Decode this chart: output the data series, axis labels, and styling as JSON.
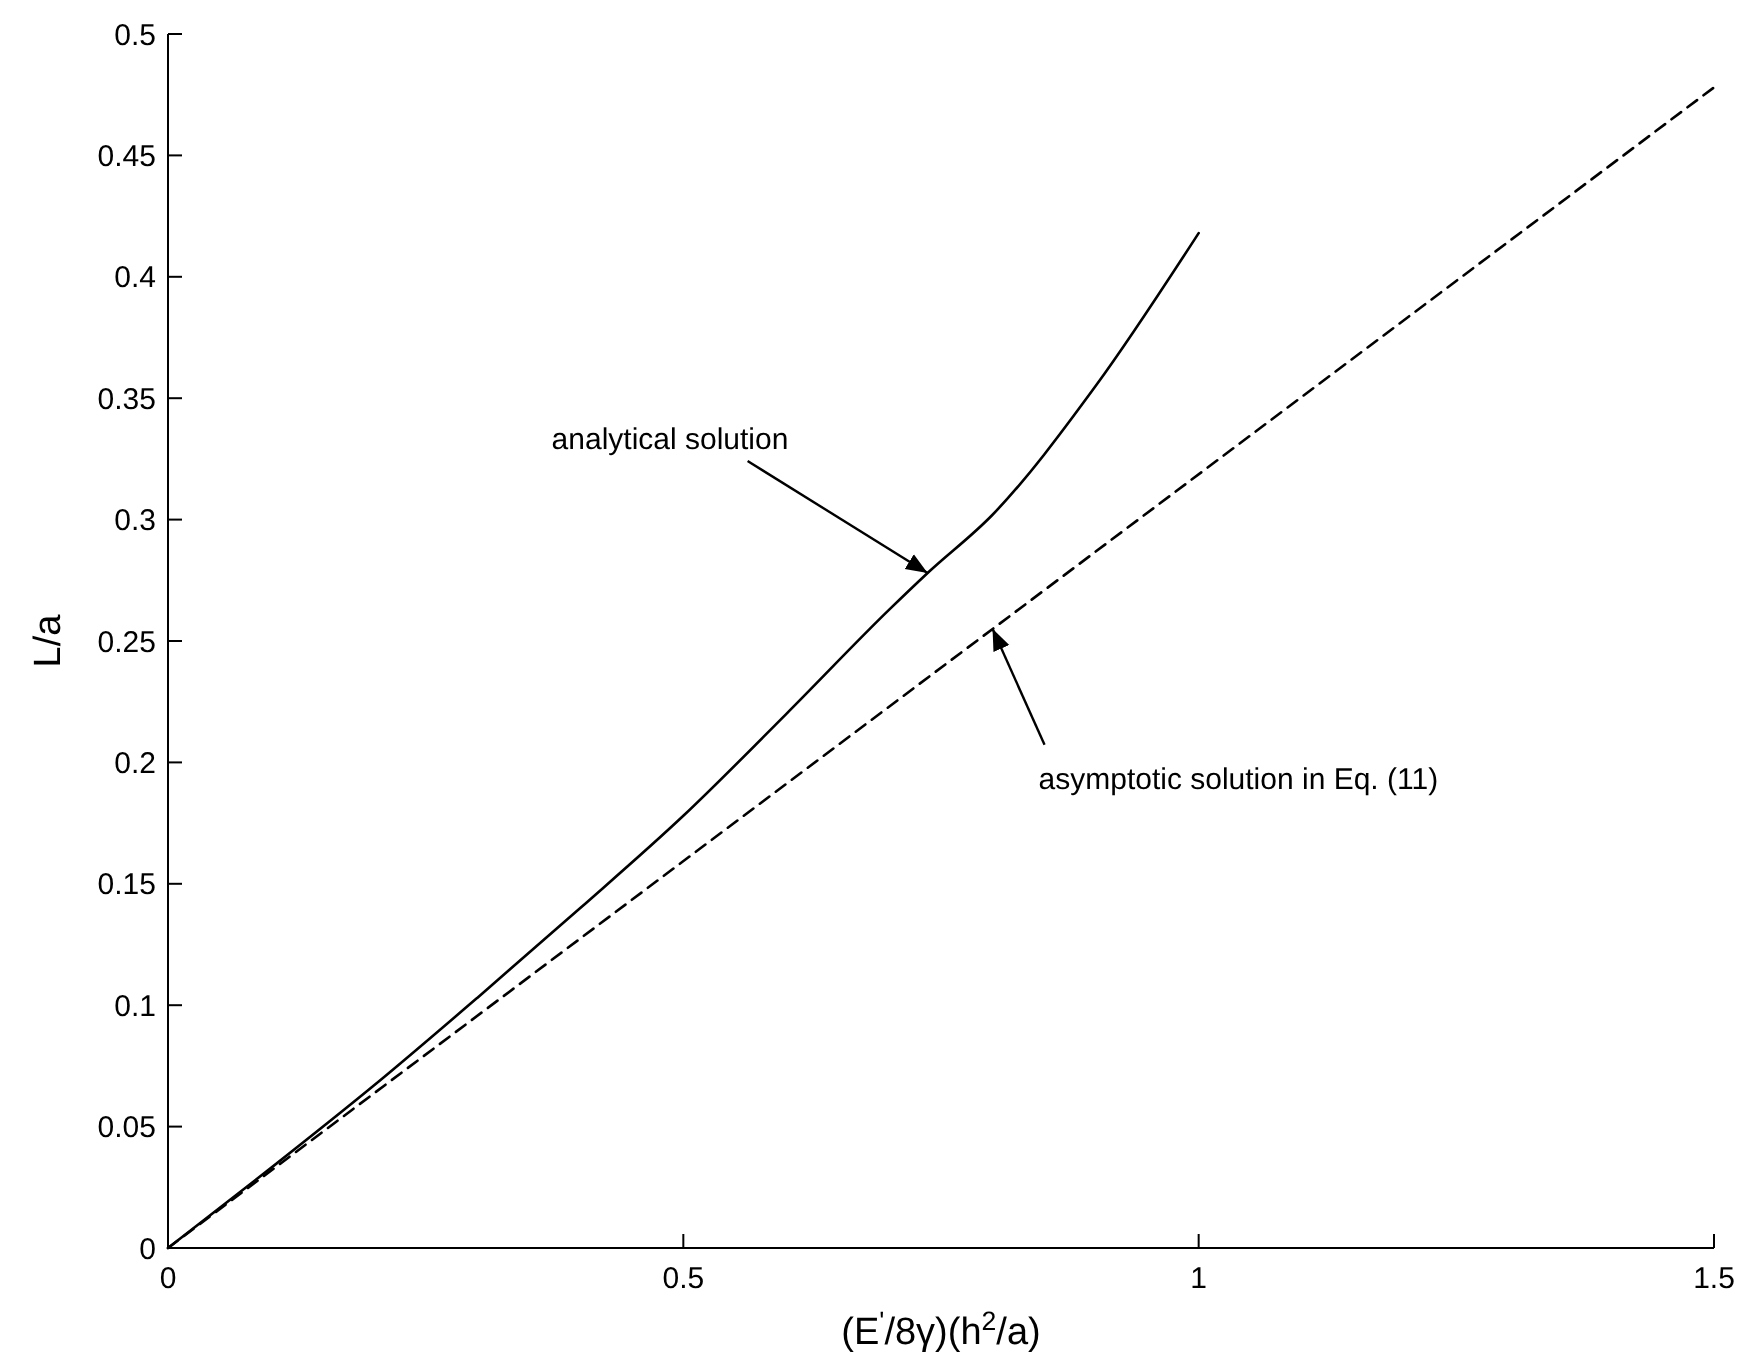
{
  "chart_data": {
    "type": "line",
    "xlabel": "(E$^{'}$/8γ)(h$^{2}$/a)",
    "ylabel": "L/a",
    "xlim": [
      0,
      1.5
    ],
    "ylim": [
      0,
      0.5
    ],
    "xticks": [
      0,
      0.5,
      1,
      1.5
    ],
    "yticks": [
      0,
      0.05,
      0.1,
      0.15,
      0.2,
      0.25,
      0.3,
      0.35,
      0.4,
      0.45,
      0.5
    ],
    "grid": false,
    "marker": "none",
    "series": [
      {
        "color": "#000000",
        "line_style": "solid",
        "x": [
          0,
          0.1,
          0.2,
          0.3,
          0.4,
          0.5,
          0.6,
          0.7,
          0.737,
          0.8,
          0.9,
          1.0
        ],
        "values": [
          0,
          0.033,
          0.067,
          0.103,
          0.14,
          0.178,
          0.22,
          0.263,
          0.278,
          0.302,
          0.355,
          0.418
        ]
      },
      {
        "color": "#000000",
        "line_style": "dashed",
        "x": [
          0,
          1.5
        ],
        "values": [
          0,
          0.478
        ]
      }
    ],
    "annotations": [
      {
        "text": "analytical solution",
        "x": 0.737,
        "y": 0.278
      },
      {
        "text": "asymptotic solution in Eq. (11)",
        "x": 0.8,
        "y": 0.255
      }
    ]
  }
}
